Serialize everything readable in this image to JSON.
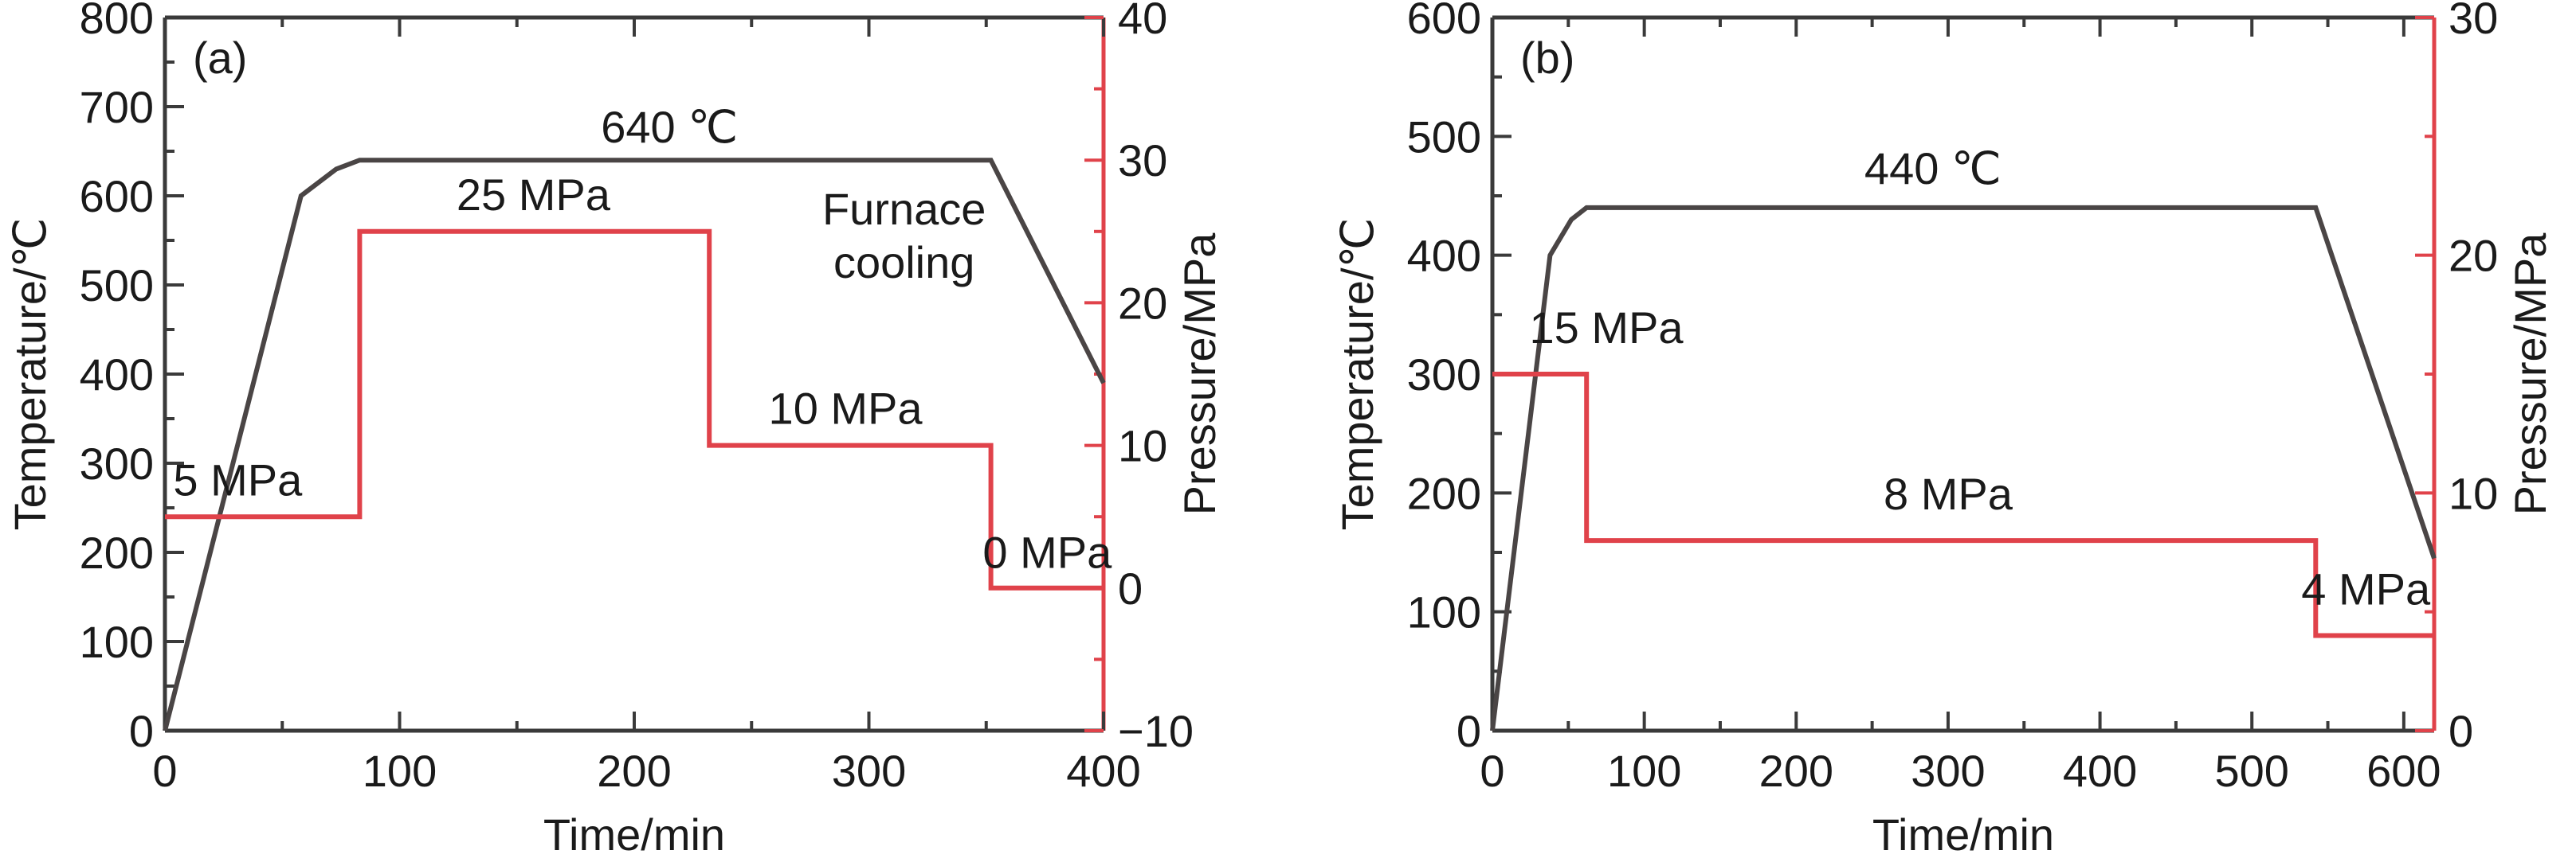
{
  "colors": {
    "temperature_line": "#4a4545",
    "pressure_line": "#e0424a",
    "axis": "#3a3a3a",
    "text": "#1a1a1a"
  },
  "chart_data": [
    {
      "type": "line",
      "panel": "(a)",
      "xlabel": "Time/min",
      "ylabel_left": "Temperature/℃",
      "ylabel_right": "Pressure/MPa",
      "xlim": [
        0,
        400
      ],
      "ylim_left": [
        0,
        800
      ],
      "ylim_right": [
        -10,
        40
      ],
      "x_ticks": [
        0,
        100,
        200,
        300,
        400
      ],
      "x_tick_labels": [
        "0",
        "100",
        "200",
        "300",
        "400"
      ],
      "y_left_ticks": [
        0,
        100,
        200,
        300,
        400,
        500,
        600,
        700,
        800
      ],
      "y_left_tick_labels": [
        "0",
        "100",
        "200",
        "300",
        "400",
        "500",
        "600",
        "700",
        "800"
      ],
      "y_right_ticks": [
        -10,
        0,
        10,
        20,
        30,
        40
      ],
      "y_right_tick_labels": [
        "−10",
        "0",
        "10",
        "20",
        "30",
        "40"
      ],
      "series": [
        {
          "axis": "left",
          "color": "#4a4545",
          "x": [
            0,
            58,
            73,
            83,
            352,
            400
          ],
          "y": [
            0,
            600,
            630,
            640,
            640,
            390
          ]
        },
        {
          "axis": "right",
          "color": "#e0424a",
          "x": [
            0,
            83,
            83,
            232,
            232,
            352,
            352,
            400
          ],
          "y": [
            5,
            5,
            25,
            25,
            10,
            10,
            0,
            0
          ]
        }
      ],
      "annotations": [
        {
          "text": "640 ℃",
          "x": 215,
          "y": 660,
          "axis": "left"
        },
        {
          "text": "25 MPa",
          "x": 157,
          "y": 26.5,
          "axis": "right"
        },
        {
          "text": "Furnace",
          "x": 315,
          "y": 568,
          "axis": "left"
        },
        {
          "text": "cooling",
          "x": 315,
          "y": 508,
          "axis": "left"
        },
        {
          "text": "10 MPa",
          "x": 290,
          "y": 11.5,
          "axis": "right"
        },
        {
          "text": "5 MPa",
          "x": 31,
          "y": 6.5,
          "axis": "right"
        },
        {
          "text": "0 MPa",
          "x": 376,
          "y": 1.4,
          "axis": "right"
        }
      ]
    },
    {
      "type": "line",
      "panel": "(b)",
      "xlabel": "Time/min",
      "ylabel_left": "Temperature/℃",
      "ylabel_right": "Pressure/MPa",
      "xlim": [
        0,
        620
      ],
      "ylim_left": [
        0,
        600
      ],
      "ylim_right": [
        0,
        30
      ],
      "x_ticks": [
        0,
        100,
        200,
        300,
        400,
        500,
        600
      ],
      "x_tick_labels": [
        "0",
        "100",
        "200",
        "300",
        "400",
        "500",
        "600"
      ],
      "y_left_ticks": [
        0,
        100,
        200,
        300,
        400,
        500,
        600
      ],
      "y_left_tick_labels": [
        "0",
        "100",
        "200",
        "300",
        "400",
        "500",
        "600"
      ],
      "y_right_ticks": [
        0,
        10,
        20,
        30
      ],
      "y_right_tick_labels": [
        "0",
        "10",
        "20",
        "30"
      ],
      "series": [
        {
          "axis": "left",
          "color": "#4a4545",
          "x": [
            0,
            38,
            52,
            62,
            542,
            620
          ],
          "y": [
            0,
            400,
            430,
            440,
            440,
            145
          ]
        },
        {
          "axis": "right",
          "color": "#e0424a",
          "x": [
            0,
            62,
            62,
            542,
            542,
            620
          ],
          "y": [
            15,
            15,
            8,
            8,
            4,
            4
          ]
        }
      ],
      "annotations": [
        {
          "text": "440 ℃",
          "x": 290,
          "y": 460,
          "axis": "left"
        },
        {
          "text": "15 MPa",
          "x": 75,
          "y": 16.3,
          "axis": "right"
        },
        {
          "text": "8 MPa",
          "x": 300,
          "y": 9.3,
          "axis": "right"
        },
        {
          "text": "4 MPa",
          "x": 575,
          "y": 5.3,
          "axis": "right"
        }
      ]
    }
  ]
}
